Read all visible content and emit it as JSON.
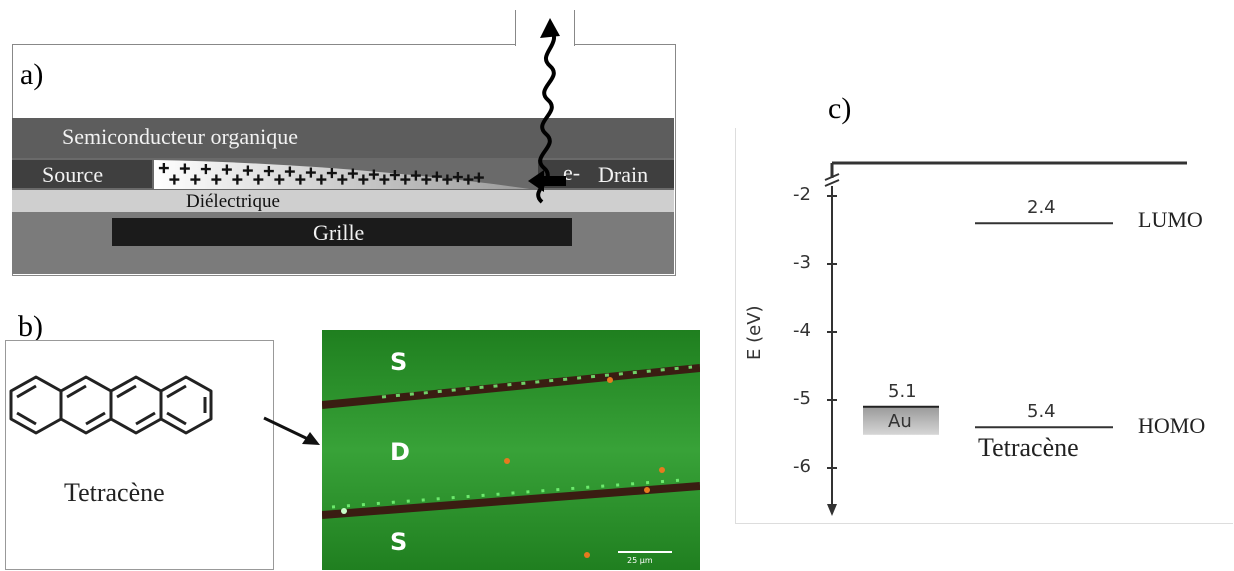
{
  "panel_a": {
    "label": "a)",
    "semiconductor": "Semiconducteur organique",
    "source": "Source",
    "drain": "Drain",
    "electron": "e-",
    "dielectric": "Diélectrique",
    "gate": "Grille",
    "charges": "+"
  },
  "panel_b": {
    "label": "b)",
    "molecule_name": "Tetracène",
    "micro_labels": [
      "S",
      "D",
      "S"
    ],
    "scale_bar": "25 µm"
  },
  "panel_c": {
    "label": "c)",
    "y_axis_label": "E (eV)",
    "y_ticks": [
      "-2",
      "-3",
      "-4",
      "-5",
      "-6"
    ],
    "au_value": "5.1",
    "au_label": "Au",
    "lumo_value": "2.4",
    "lumo_label": "LUMO",
    "homo_value": "5.4",
    "homo_label": "HOMO",
    "material_label": "Tetracène"
  },
  "energy_levels": {
    "axis_range_eV": [
      -6.5,
      -1.5
    ],
    "au_workfunction_eV": -5.1,
    "lumo_eV": -2.4,
    "homo_eV": -5.4
  }
}
